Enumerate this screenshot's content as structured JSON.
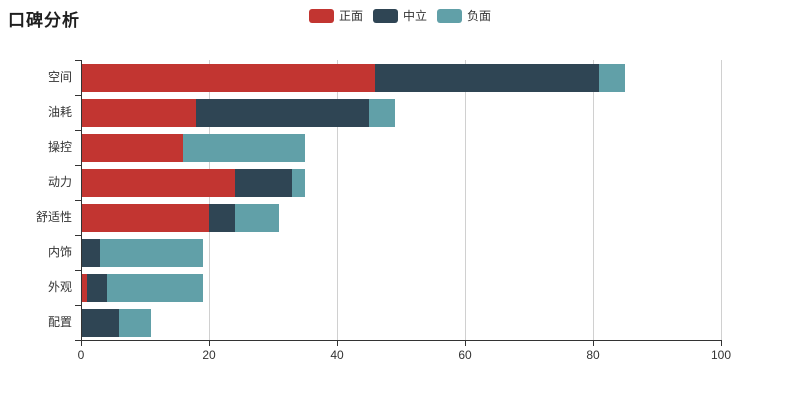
{
  "title": "口碑分析",
  "legend": {
    "items": [
      {
        "label": "正面",
        "color": "#c23531"
      },
      {
        "label": "中立",
        "color": "#2f4554"
      },
      {
        "label": "负面",
        "color": "#61a0a8"
      }
    ]
  },
  "colors": {
    "positive": "#c23531",
    "neutral": "#2f4554",
    "negative": "#61a0a8",
    "axis": "#333333",
    "grid": "#d0d0d0",
    "text": "#333333"
  },
  "chart_data": {
    "type": "bar",
    "orientation": "horizontal",
    "stacked": true,
    "title": "口碑分析",
    "categories": [
      "空间",
      "油耗",
      "操控",
      "动力",
      "舒适性",
      "内饰",
      "外观",
      "配置"
    ],
    "series": [
      {
        "name": "正面",
        "color": "#c23531",
        "values": [
          46,
          18,
          16,
          24,
          20,
          0,
          1,
          0
        ]
      },
      {
        "name": "中立",
        "color": "#2f4554",
        "values": [
          35,
          27,
          0,
          9,
          4,
          3,
          3,
          6
        ]
      },
      {
        "name": "负面",
        "color": "#61a0a8",
        "values": [
          4,
          4,
          19,
          2,
          7,
          16,
          15,
          5
        ]
      }
    ],
    "totals": [
      85,
      49,
      35,
      35,
      31,
      19,
      19,
      11
    ],
    "x_ticks": [
      0,
      20,
      40,
      60,
      80,
      100
    ],
    "xlim": [
      0,
      100
    ],
    "grid": true,
    "legend_position": "top-center",
    "xlabel": "",
    "ylabel": ""
  }
}
